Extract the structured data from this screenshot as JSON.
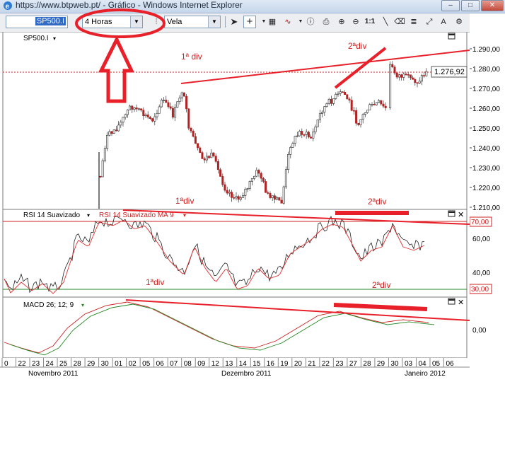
{
  "window": {
    "title": "https://www.btpweb.pt/ - Gráfico - Windows Internet Explorer"
  },
  "toolbar": {
    "symbol": "SP500.I",
    "timeframe": "4 Horas",
    "chart_style": "Vela",
    "zoom_label": "1:1",
    "tools": [
      "cursor-icon",
      "crosshair-icon",
      "indicator-icon",
      "grid-icon",
      "info-icon",
      "print-icon",
      "zoom-in-icon",
      "zoom-out-icon",
      "ratio-icon",
      "trendline-icon",
      "eraser-icon",
      "fibonacci-icon",
      "text-icon",
      "expand-icon",
      "settings-icon"
    ]
  },
  "panels": {
    "price": {
      "label": "SP500.I",
      "current_value": "1.276,92",
      "y_ticks": [
        "1.290,00",
        "1.280,00",
        "1.270,00",
        "1.260,00",
        "1.250,00",
        "1.240,00",
        "1.230,00",
        "1.220,00",
        "1.210,00"
      ],
      "annotations": [
        "1ª div",
        "2ªdiv",
        "1ªdiv",
        "2ªdiv"
      ]
    },
    "rsi": {
      "label": "RSI 14 Suavizado",
      "ma_label": "RSI 14 Suavizado MA 9",
      "upper_level": "70,00",
      "lower_level": "30,00",
      "y_ticks": [
        "60,00",
        "40,00"
      ],
      "annotations": [
        "1ªdiv",
        "2ªdiv"
      ]
    },
    "macd": {
      "label": "MACD 26; 12; 9",
      "y_ticks": [
        "0,00"
      ]
    }
  },
  "x_axis": {
    "days": [
      "0",
      "22",
      "23",
      "24",
      "25",
      "28",
      "29",
      "30",
      "01",
      "02",
      "05",
      "06",
      "07",
      "08",
      "09",
      "12",
      "13",
      "14",
      "15",
      "16",
      "19",
      "20",
      "21",
      "22",
      "23",
      "27",
      "28",
      "29",
      "30",
      "03",
      "04",
      "05",
      "06"
    ],
    "months": [
      "Novembro 2011",
      "Dezembro 2011",
      "Janeiro 2012"
    ]
  },
  "colors": {
    "bull_candle": "#2a2a2a",
    "bear_candle": "#b22222",
    "annotation_red": "#e8202a",
    "rsi_line": "#222222",
    "rsi_ma": "#e03030",
    "macd_line": "#cc2222",
    "signal_line": "#228822",
    "rsi_upper": "#cc2222",
    "rsi_lower": "#228822"
  }
}
